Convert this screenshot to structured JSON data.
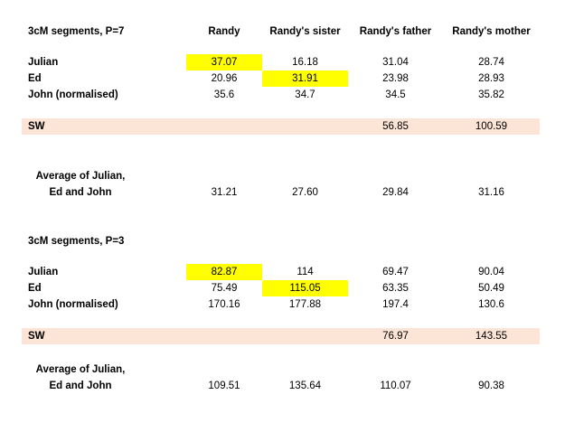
{
  "columns": [
    "Randy",
    "Randy's sister",
    "Randy's father",
    "Randy's mother"
  ],
  "tables": [
    {
      "title": "3cM segments, P=7",
      "rows": [
        {
          "label": "Julian",
          "values": [
            "37.07",
            "16.18",
            "31.04",
            "28.74"
          ]
        },
        {
          "label": "Ed",
          "values": [
            "20.96",
            "31.91",
            "23.98",
            "28.93"
          ]
        },
        {
          "label": "John (normalised)",
          "values": [
            "35.6",
            "34.7",
            "34.5",
            "35.82"
          ]
        }
      ],
      "sw": {
        "label": "SW",
        "father": "56.85",
        "mother": "100.59"
      },
      "average": {
        "label_line1": "Average of Julian,",
        "label_line2": "Ed and John",
        "values": [
          "31.21",
          "27.60",
          "29.84",
          "31.16"
        ]
      }
    },
    {
      "title": "3cM segments, P=3",
      "rows": [
        {
          "label": "Julian",
          "values": [
            "82.87",
            "114",
            "69.47",
            "90.04"
          ]
        },
        {
          "label": "Ed",
          "values": [
            "75.49",
            "115.05",
            "63.35",
            "50.49"
          ]
        },
        {
          "label": "John (normalised)",
          "values": [
            "170.16",
            "177.88",
            "197.4",
            "130.6"
          ]
        }
      ],
      "sw": {
        "label": "SW",
        "father": "76.97",
        "mother": "143.55"
      },
      "average": {
        "label_line1": "Average of Julian,",
        "label_line2": "Ed and John",
        "values": [
          "109.51",
          "135.64",
          "110.07",
          "90.38"
        ]
      }
    }
  ],
  "highlight_color": "#ffff00",
  "sw_band_color": "#fce4d6"
}
